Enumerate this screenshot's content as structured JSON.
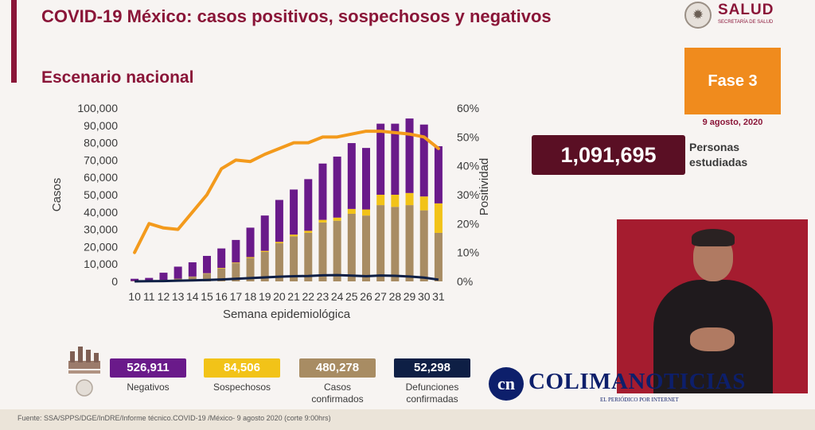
{
  "header": {
    "title": "COVID-19 México: casos positivos, sospechosos y negativos",
    "subtitle": "Escenario nacional"
  },
  "logo": {
    "name": "SALUD",
    "sub": "SECRETARÍA DE SALUD"
  },
  "fase": {
    "label": "Fase 3",
    "date": "9 agosto, 2020"
  },
  "total": {
    "value": "1,091,695",
    "label_line1": "Personas",
    "label_line2": "estudiadas"
  },
  "kpis": [
    {
      "value": "526,911",
      "label": "Negativos",
      "color": "#6a1a8a",
      "text_color": "#ffffff"
    },
    {
      "value": "84,506",
      "label": "Sospechosos",
      "color": "#f2c318",
      "text_color": "#ffffff"
    },
    {
      "value": "480,278",
      "label": "Casos confirmados",
      "color": "#a88c63",
      "text_color": "#ffffff"
    },
    {
      "value": "52,298",
      "label": "Defunciones confirmadas",
      "color": "#0e1f45",
      "text_color": "#ffffff"
    }
  ],
  "brand": {
    "initial": "cn",
    "name": "COLIMANOTICIAS",
    "tagline": "EL PERIÓDICO POR INTERNET"
  },
  "footer": {
    "source": "Fuente: SSA/SPPS/DGE/InDRE/Informe técnico.COVID-19 /México- 9 agosto 2020 (corte 9:00hrs)"
  },
  "chart_data": {
    "type": "bar",
    "stacked": true,
    "categories": [
      "10",
      "11",
      "12",
      "13",
      "14",
      "15",
      "16",
      "17",
      "18",
      "19",
      "20",
      "21",
      "22",
      "23",
      "24",
      "25",
      "26",
      "27",
      "28",
      "29",
      "30",
      "31"
    ],
    "xlabel": "Semana epidemiológica",
    "ylabel": "Casos",
    "y2label": "Positividad",
    "ylim": [
      0,
      100000
    ],
    "y2lim": [
      0,
      60
    ],
    "yticks": [
      "0",
      "10,000",
      "20,000",
      "30,000",
      "40,000",
      "50,000",
      "60,000",
      "70,000",
      "80,000",
      "90,000",
      "100,000"
    ],
    "y2ticks": [
      "0%",
      "10%",
      "20%",
      "30%",
      "40%",
      "50%",
      "60%"
    ],
    "series": [
      {
        "key": "confirmados",
        "color": "#a88c63",
        "values": [
          200,
          400,
          900,
          1600,
          2700,
          4500,
          7500,
          10500,
          13500,
          17000,
          22000,
          26000,
          28000,
          34000,
          35000,
          39000,
          38000,
          44000,
          43000,
          44000,
          41000,
          28000
        ]
      },
      {
        "key": "sospechosos",
        "color": "#f2c318",
        "values": [
          0,
          0,
          0,
          0,
          100,
          200,
          300,
          400,
          500,
          600,
          800,
          1000,
          1200,
          1500,
          1800,
          2800,
          3500,
          6000,
          7000,
          7000,
          8000,
          17000
        ]
      },
      {
        "key": "negativos",
        "color": "#6a1a8a",
        "values": [
          1300,
          1600,
          4100,
          6900,
          8200,
          10000,
          11200,
          13000,
          17000,
          20400,
          24200,
          26000,
          29800,
          32500,
          35200,
          38000,
          35500,
          41000,
          41000,
          43000,
          41500,
          33000
        ]
      }
    ],
    "positividad": [
      10,
      20,
      18.5,
      18,
      24,
      30,
      39,
      42,
      41.5,
      44,
      46,
      48,
      48,
      50,
      50,
      51,
      52,
      52,
      51.5,
      51,
      50,
      46
    ],
    "defunciones": [
      0,
      100,
      200,
      400,
      600,
      800,
      1100,
      1500,
      1900,
      2300,
      2700,
      3000,
      3100,
      3500,
      3600,
      3300,
      3000,
      3400,
      3200,
      2800,
      2200,
      1000
    ],
    "positividad_color": "#f39a1c",
    "defunciones_color": "#0e1f45"
  }
}
